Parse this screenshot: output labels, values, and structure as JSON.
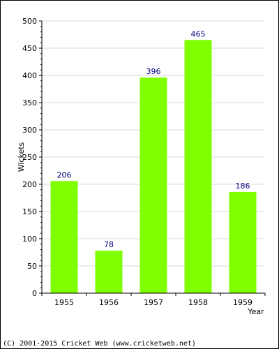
{
  "chart_data": {
    "type": "bar",
    "categories": [
      "1955",
      "1956",
      "1957",
      "1958",
      "1959"
    ],
    "values": [
      206,
      78,
      396,
      465,
      186
    ],
    "title": "",
    "xlabel": "Year",
    "ylabel": "Wickets",
    "ylim": [
      0,
      500
    ],
    "yticks": [
      0,
      50,
      100,
      150,
      200,
      250,
      300,
      350,
      400,
      450,
      500
    ],
    "grid": true,
    "legend": "none",
    "bar_color": "#80ff00",
    "data_label_color": "#000080",
    "grid_color": "#d8d8d8"
  },
  "footer": {
    "copyright": "(C) 2001-2015 Cricket Web (www.cricketweb.net)"
  }
}
